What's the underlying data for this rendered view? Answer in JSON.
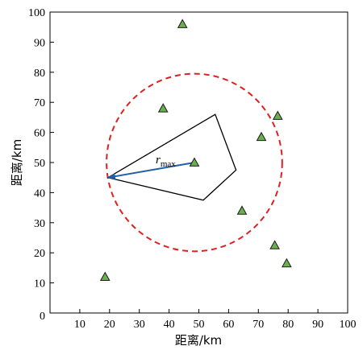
{
  "chart_data": {
    "type": "scatter",
    "title": "",
    "xlabel": "距离/km",
    "ylabel": "距离/km",
    "xlim": [
      0,
      100
    ],
    "ylim": [
      0,
      100
    ],
    "xticks": [
      0,
      10,
      20,
      30,
      40,
      50,
      60,
      70,
      80,
      90,
      100
    ],
    "yticks": [
      0,
      10,
      20,
      30,
      40,
      50,
      60,
      70,
      80,
      90,
      100
    ],
    "x_tick_labels": [
      "0",
      "10",
      "20",
      "30",
      "40",
      "50",
      "60",
      "70",
      "80",
      "90",
      "100"
    ],
    "y_tick_labels": [
      "0",
      "10",
      "20",
      "30",
      "40",
      "50",
      "60",
      "70",
      "80",
      "90",
      "100"
    ],
    "grid": false,
    "points": [
      {
        "x": 44.5,
        "y": 96
      },
      {
        "x": 38,
        "y": 68
      },
      {
        "x": 76.5,
        "y": 65.5
      },
      {
        "x": 71,
        "y": 58.5
      },
      {
        "x": 48.5,
        "y": 50
      },
      {
        "x": 64.5,
        "y": 34
      },
      {
        "x": 75.5,
        "y": 22.5
      },
      {
        "x": 79.5,
        "y": 16.5
      },
      {
        "x": 18.5,
        "y": 12
      }
    ],
    "polygon": [
      {
        "x": 19.5,
        "y": 45
      },
      {
        "x": 55.5,
        "y": 66
      },
      {
        "x": 62.5,
        "y": 47.5
      },
      {
        "x": 51.5,
        "y": 37.5
      }
    ],
    "circle": {
      "cx": 48.5,
      "cy": 50,
      "r": 29.5
    },
    "arrow": {
      "from": {
        "x": 48.5,
        "y": 50
      },
      "to": {
        "x": 19.5,
        "y": 45
      }
    },
    "annotation": {
      "main": "r",
      "sub": "max"
    },
    "colors": {
      "marker_fill": "#6ab04c",
      "marker_stroke": "#1a1a1a",
      "circle": "#e02020",
      "arrow": "#1f5fa6",
      "polygon": "#000000"
    }
  }
}
